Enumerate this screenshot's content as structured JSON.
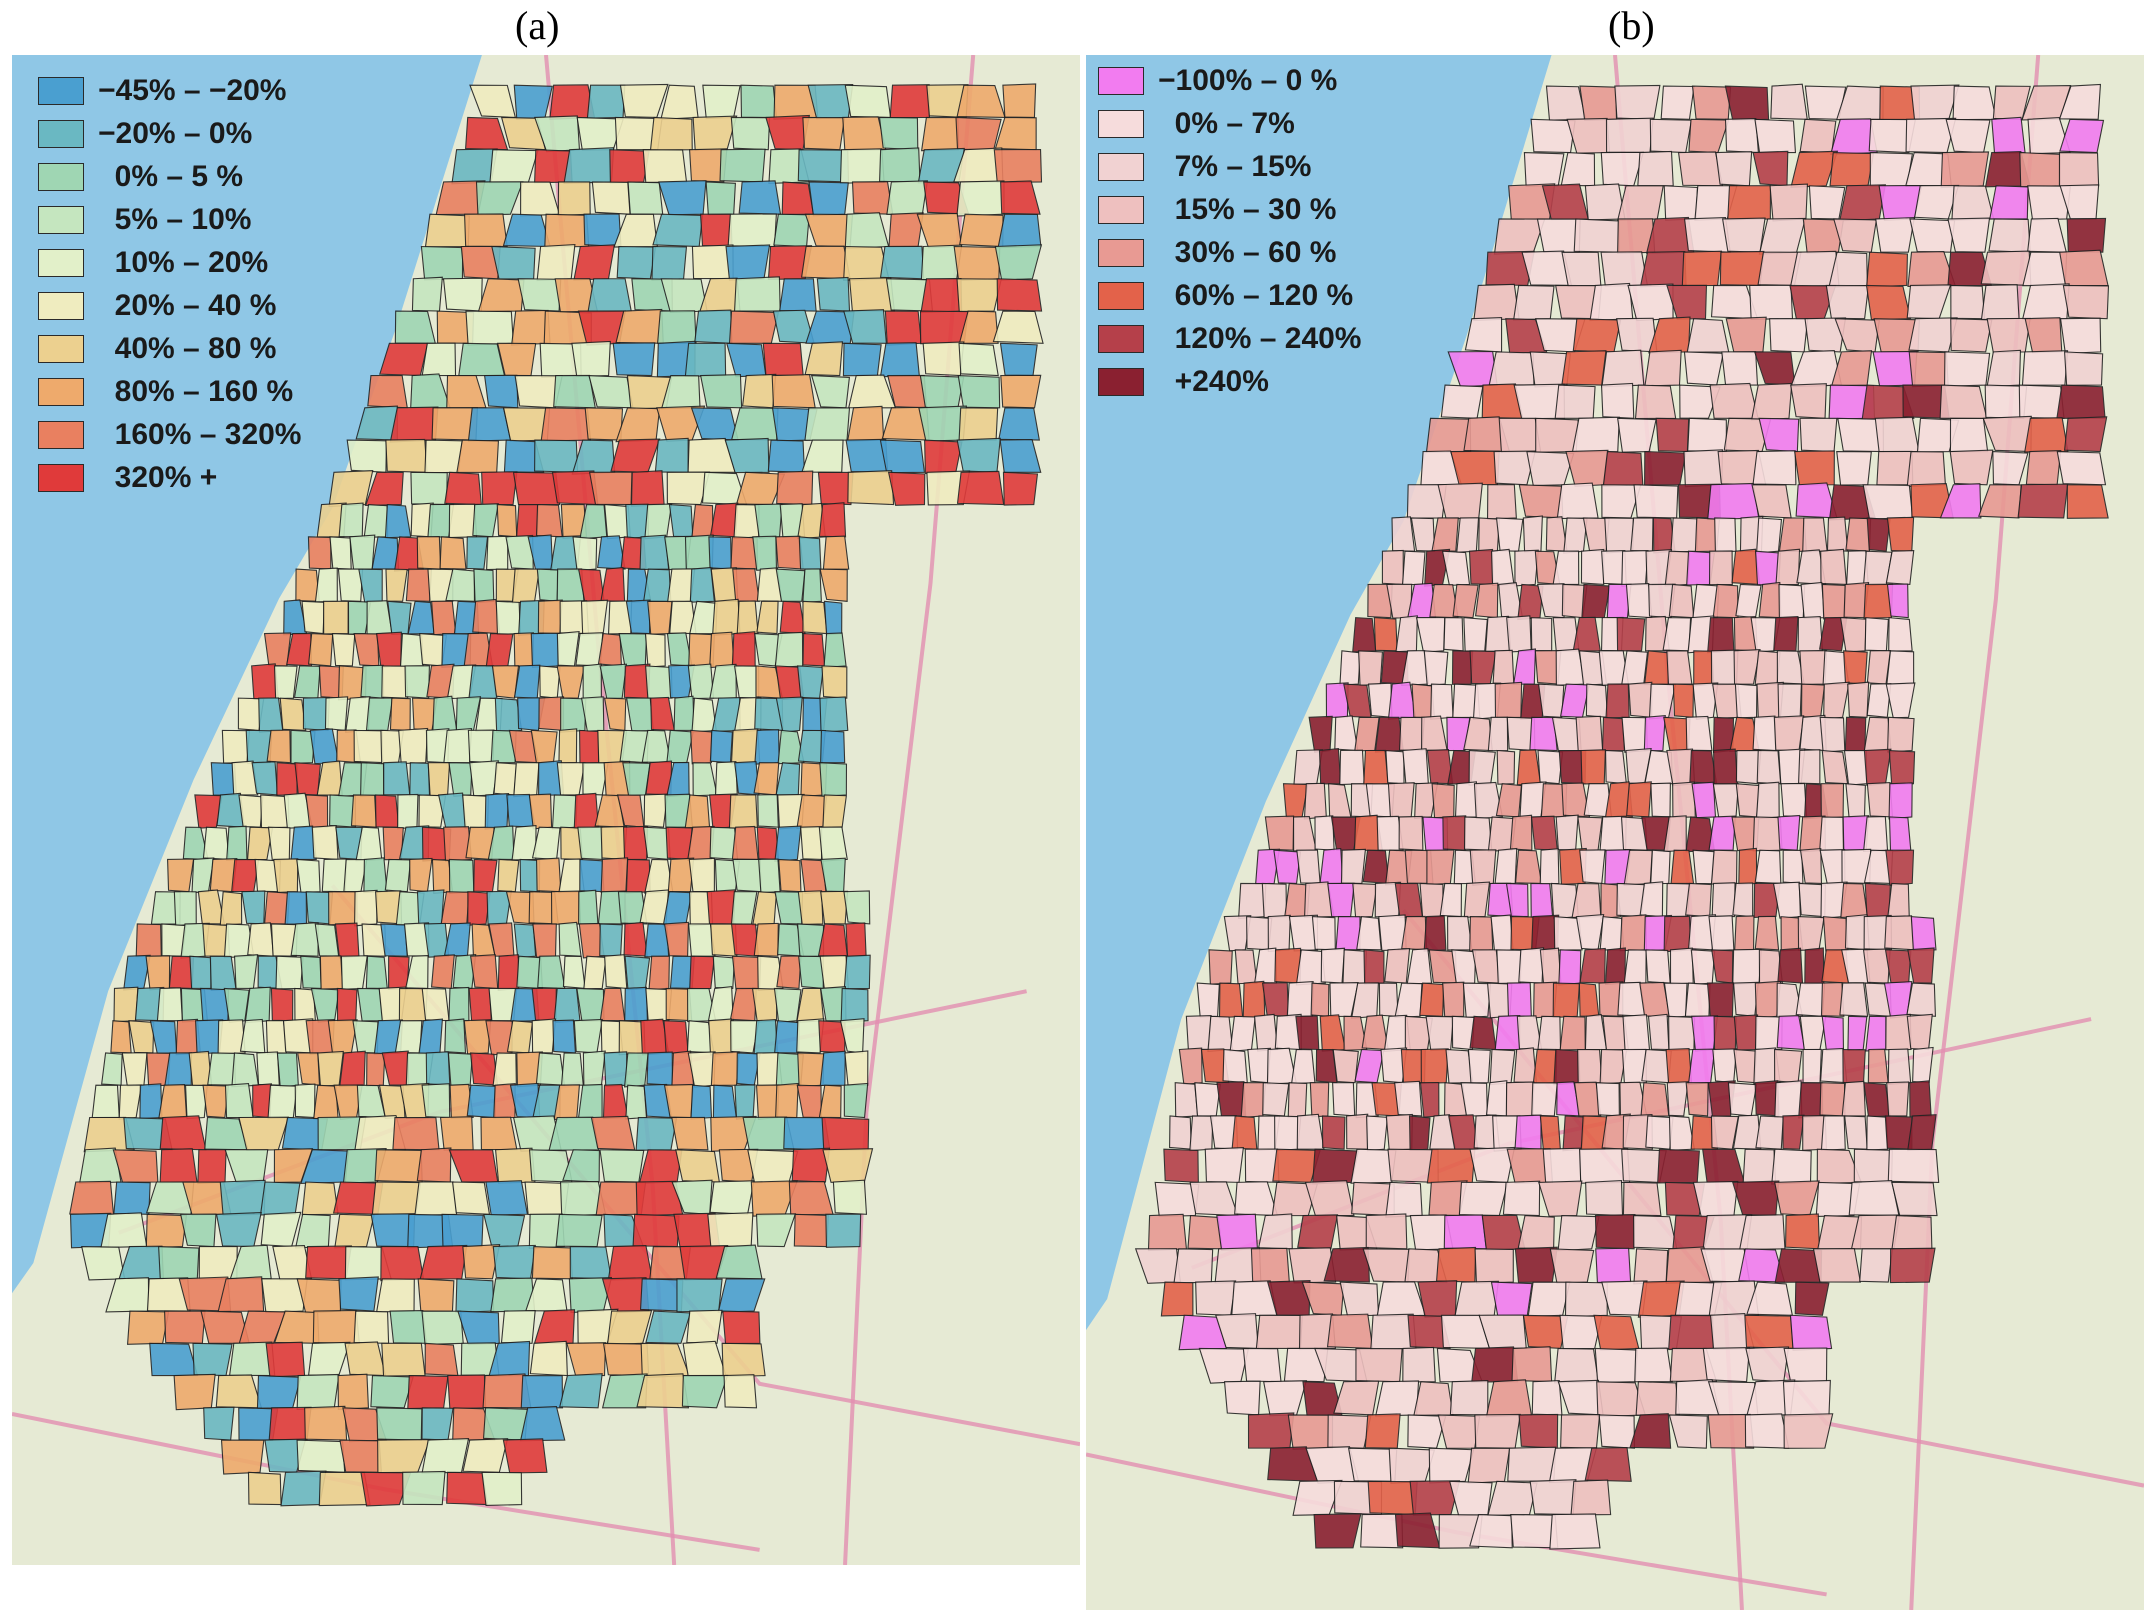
{
  "panels": [
    {
      "id": "a",
      "label": "(a)",
      "legend": [
        {
          "label": "−45% – −20%",
          "color": "#4a9fd0"
        },
        {
          "label": "−20% – 0%",
          "color": "#6ab8c2"
        },
        {
          "label": "  0% – 5 %",
          "color": "#9fd6b3"
        },
        {
          "label": "  5% – 10%",
          "color": "#c5e6bf"
        },
        {
          "label": "  10% – 20%",
          "color": "#e2f0c9"
        },
        {
          "label": "  20% – 40 %",
          "color": "#efecbf"
        },
        {
          "label": "  40% – 80 %",
          "color": "#ecd08f"
        },
        {
          "label": "  80% – 160 %",
          "color": "#eeaa6c"
        },
        {
          "label": "  160% – 320%",
          "color": "#e98060"
        },
        {
          "label": "  320% +",
          "color": "#e03a3a"
        }
      ]
    },
    {
      "id": "b",
      "label": "(b)",
      "legend": [
        {
          "label": "−100% – 0 %",
          "color": "#f27cf0"
        },
        {
          "label": "  0% – 7%",
          "color": "#f6dcdc"
        },
        {
          "label": "  7% – 15%",
          "color": "#f1d2d2"
        },
        {
          "label": "  15% – 30 %",
          "color": "#eec0bf"
        },
        {
          "label": "  30% – 60 %",
          "color": "#e89a93"
        },
        {
          "label": "  60% – 120 %",
          "color": "#e3624a"
        },
        {
          "label": "  120% – 240%",
          "color": "#b5404a"
        },
        {
          "label": "  +240%",
          "color": "#8a2030"
        }
      ]
    }
  ],
  "map_colors": {
    "sea": "#8fc7e6",
    "land": "#e6ead4",
    "roads": "#e28fb0",
    "outline": "#222222"
  }
}
